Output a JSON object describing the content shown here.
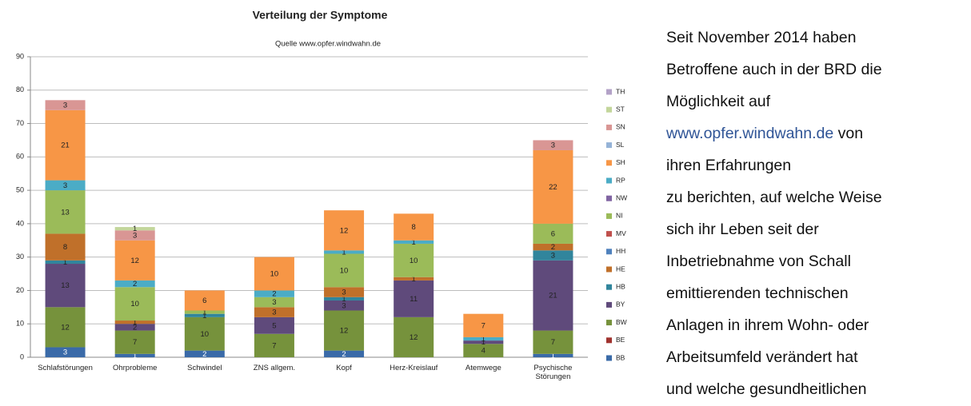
{
  "chart_data": {
    "type": "stacked_bar",
    "title": "Verteilung der Symptome",
    "subtitle": "Quelle www.opfer.windwahn.de",
    "categories": [
      "Schlafstörungen",
      "Ohrprobleme",
      "Schwindel",
      "ZNS allgem.",
      "Kopf",
      "Herz-Kreislauf",
      "Atemwege",
      "Psychische Störungen"
    ],
    "ylim": [
      0,
      90
    ],
    "yticks": [
      0,
      10,
      20,
      30,
      40,
      50,
      60,
      70,
      80,
      90
    ],
    "grid": true,
    "series": [
      {
        "name": "BB",
        "color": "#3a6aa8",
        "values": [
          3,
          1,
          2,
          0,
          2,
          0,
          0,
          1
        ]
      },
      {
        "name": "BE",
        "color": "#a0322e",
        "values": [
          0,
          0,
          0,
          0,
          0,
          0,
          0,
          0
        ]
      },
      {
        "name": "BW",
        "color": "#76923c",
        "values": [
          12,
          7,
          10,
          7,
          12,
          12,
          4,
          7
        ]
      },
      {
        "name": "BY",
        "color": "#5f4a7b",
        "values": [
          13,
          2,
          0,
          5,
          3,
          11,
          1,
          21
        ]
      },
      {
        "name": "HB",
        "color": "#31859c",
        "values": [
          1,
          0,
          1,
          0,
          1,
          0,
          0,
          3
        ]
      },
      {
        "name": "HE",
        "color": "#c0702a",
        "values": [
          8,
          1,
          0,
          3,
          3,
          1,
          0,
          2
        ]
      },
      {
        "name": "HH",
        "color": "#4f81bd",
        "values": [
          0,
          0,
          0,
          0,
          0,
          0,
          0,
          0
        ]
      },
      {
        "name": "MV",
        "color": "#c0504d",
        "values": [
          0,
          0,
          0,
          0,
          0,
          0,
          0,
          0
        ]
      },
      {
        "name": "NI",
        "color": "#9bbb59",
        "values": [
          13,
          10,
          1,
          3,
          10,
          10,
          0,
          6
        ]
      },
      {
        "name": "NW",
        "color": "#8064a2",
        "values": [
          0,
          0,
          0,
          0,
          0,
          0,
          0,
          0
        ]
      },
      {
        "name": "RP",
        "color": "#4bacc6",
        "values": [
          3,
          2,
          0,
          2,
          1,
          1,
          1,
          0
        ]
      },
      {
        "name": "SH",
        "color": "#f79646",
        "values": [
          21,
          12,
          6,
          10,
          12,
          8,
          7,
          22
        ]
      },
      {
        "name": "SL",
        "color": "#95b3d7",
        "values": [
          0,
          0,
          0,
          0,
          0,
          0,
          0,
          0
        ]
      },
      {
        "name": "SN",
        "color": "#d99694",
        "values": [
          3,
          3,
          0,
          0,
          0,
          0,
          0,
          3
        ]
      },
      {
        "name": "ST",
        "color": "#c3d69b",
        "values": [
          0,
          1,
          0,
          0,
          0,
          0,
          0,
          0
        ]
      },
      {
        "name": "TH",
        "color": "#b3a2c7",
        "values": [
          0,
          0,
          0,
          0,
          0,
          0,
          0,
          0
        ]
      }
    ]
  },
  "side_text": {
    "before": [
      "Seit November 2014 haben",
      "Betroffene auch in der BRD die",
      "Möglichkeit auf"
    ],
    "link": "www.opfer.windwahn.de",
    "link_after": "von",
    "after": [
      "ihren Erfahrungen",
      "zu berichten, auf welche Weise",
      "sich ihr Leben seit der",
      "Inbetriebnahme von Schall",
      "emittierenden technischen",
      "Anlagen in ihrem Wohn- oder",
      "Arbeitsumfeld verändert hat",
      "und welche gesundheitlichen"
    ]
  }
}
